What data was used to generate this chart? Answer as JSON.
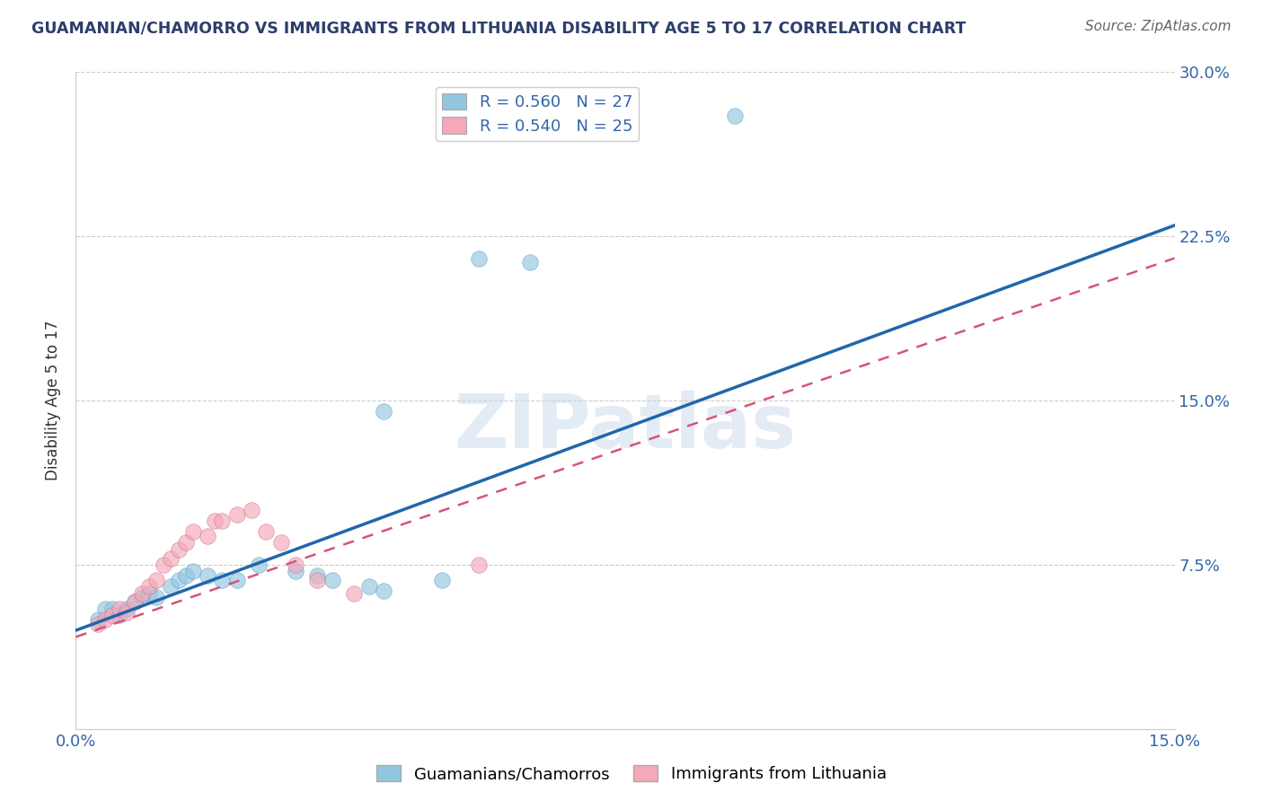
{
  "title": "GUAMANIAN/CHAMORRO VS IMMIGRANTS FROM LITHUANIA DISABILITY AGE 5 TO 17 CORRELATION CHART",
  "source": "Source: ZipAtlas.com",
  "ylabel": "Disability Age 5 to 17",
  "xlim": [
    0.0,
    0.15
  ],
  "ylim": [
    0.0,
    0.3
  ],
  "xticks": [
    0.0,
    0.03,
    0.06,
    0.09,
    0.12,
    0.15
  ],
  "xticklabels": [
    "0.0%",
    "",
    "",
    "",
    "",
    "15.0%"
  ],
  "yticks": [
    0.0,
    0.075,
    0.15,
    0.225,
    0.3
  ],
  "yticklabels_right": [
    "",
    "7.5%",
    "15.0%",
    "22.5%",
    "30.0%"
  ],
  "legend_r1": "R = 0.560",
  "legend_n1": "N = 27",
  "legend_r2": "R = 0.540",
  "legend_n2": "N = 25",
  "blue_color": "#92c5de",
  "pink_color": "#f4a8b8",
  "line_blue": "#2166ac",
  "line_pink": "#d6537a",
  "watermark": "ZIPatlas",
  "blue_scatter": [
    [
      0.003,
      0.05
    ],
    [
      0.004,
      0.055
    ],
    [
      0.005,
      0.055
    ],
    [
      0.006,
      0.052
    ],
    [
      0.007,
      0.055
    ],
    [
      0.008,
      0.058
    ],
    [
      0.009,
      0.06
    ],
    [
      0.01,
      0.062
    ],
    [
      0.011,
      0.06
    ],
    [
      0.013,
      0.065
    ],
    [
      0.014,
      0.068
    ],
    [
      0.015,
      0.07
    ],
    [
      0.016,
      0.072
    ],
    [
      0.018,
      0.07
    ],
    [
      0.02,
      0.068
    ],
    [
      0.022,
      0.068
    ],
    [
      0.025,
      0.075
    ],
    [
      0.03,
      0.072
    ],
    [
      0.033,
      0.07
    ],
    [
      0.035,
      0.068
    ],
    [
      0.04,
      0.065
    ],
    [
      0.042,
      0.063
    ],
    [
      0.05,
      0.068
    ],
    [
      0.042,
      0.145
    ],
    [
      0.055,
      0.215
    ],
    [
      0.062,
      0.213
    ],
    [
      0.09,
      0.28
    ]
  ],
  "pink_scatter": [
    [
      0.003,
      0.048
    ],
    [
      0.004,
      0.05
    ],
    [
      0.005,
      0.052
    ],
    [
      0.006,
      0.055
    ],
    [
      0.007,
      0.053
    ],
    [
      0.008,
      0.058
    ],
    [
      0.009,
      0.062
    ],
    [
      0.01,
      0.065
    ],
    [
      0.011,
      0.068
    ],
    [
      0.012,
      0.075
    ],
    [
      0.013,
      0.078
    ],
    [
      0.014,
      0.082
    ],
    [
      0.015,
      0.085
    ],
    [
      0.016,
      0.09
    ],
    [
      0.018,
      0.088
    ],
    [
      0.019,
      0.095
    ],
    [
      0.02,
      0.095
    ],
    [
      0.022,
      0.098
    ],
    [
      0.024,
      0.1
    ],
    [
      0.026,
      0.09
    ],
    [
      0.028,
      0.085
    ],
    [
      0.03,
      0.075
    ],
    [
      0.033,
      0.068
    ],
    [
      0.038,
      0.062
    ],
    [
      0.055,
      0.075
    ]
  ],
  "blue_line": [
    [
      0.0,
      0.045
    ],
    [
      0.15,
      0.23
    ]
  ],
  "pink_line": [
    [
      0.0,
      0.042
    ],
    [
      0.15,
      0.215
    ]
  ]
}
